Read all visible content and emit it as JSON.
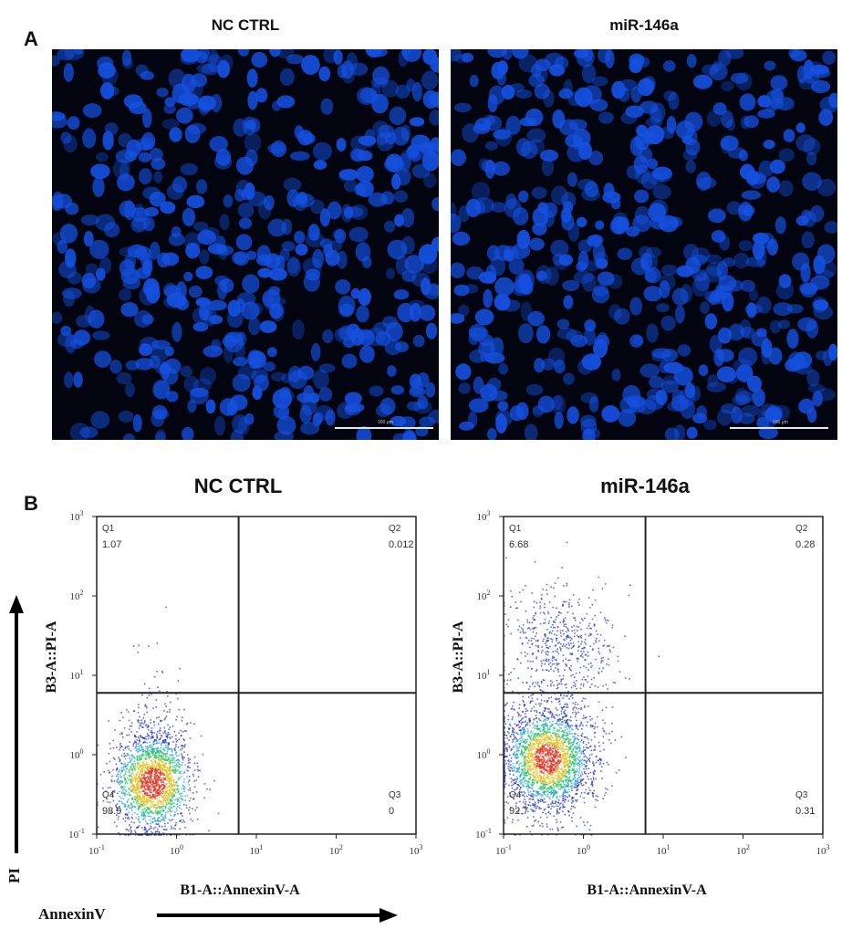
{
  "panels": {
    "a_letter": "A",
    "b_letter": "B"
  },
  "fluorescence": {
    "left_title": "NC CTRL",
    "right_title": "miR-146a",
    "scale_label": "100 μm",
    "colors": {
      "background": "#02040f",
      "nucleus": "#1550e0"
    }
  },
  "flow": {
    "pi_label": "PI",
    "annexin_label": "AnnexinV",
    "colors": {
      "density_low": "#2030c0",
      "density_mid": "#20c060",
      "density_high": "#e03020"
    }
  },
  "chart_data": [
    {
      "type": "scatter",
      "title": "NC CTRL",
      "xlabel": "B1-A::AnnexinV-A",
      "ylabel": "B3-A::PI-A",
      "xscale": "log",
      "yscale": "log",
      "xlim": [
        0.1,
        1000
      ],
      "ylim": [
        0.1,
        1000
      ],
      "xticks": [
        "10-1",
        "100",
        "101",
        "102",
        "103"
      ],
      "yticks": [
        "10-1",
        "100",
        "101",
        "102",
        "103"
      ],
      "x_gate": 6.0,
      "y_gate": 6.0,
      "quadrants": [
        {
          "name": "Q1",
          "value": "1.07"
        },
        {
          "name": "Q2",
          "value": "0.012"
        },
        {
          "name": "Q3",
          "value": "0"
        },
        {
          "name": "Q4",
          "value": "98.9"
        }
      ],
      "population_center": [
        0.5,
        0.45
      ]
    },
    {
      "type": "scatter",
      "title": "miR-146a",
      "xlabel": "B1-A::AnnexinV-A",
      "ylabel": "B3-A::PI-A",
      "xscale": "log",
      "yscale": "log",
      "xlim": [
        0.1,
        1000
      ],
      "ylim": [
        0.1,
        1000
      ],
      "xticks": [
        "10-1",
        "100",
        "101",
        "102",
        "103"
      ],
      "yticks": [
        "10-1",
        "100",
        "101",
        "102",
        "103"
      ],
      "x_gate": 6.0,
      "y_gate": 6.0,
      "quadrants": [
        {
          "name": "Q1",
          "value": "6.68"
        },
        {
          "name": "Q2",
          "value": "0.28"
        },
        {
          "name": "Q3",
          "value": "0.31"
        },
        {
          "name": "Q4",
          "value": "92.7"
        }
      ],
      "population_center": [
        0.35,
        0.9
      ]
    }
  ]
}
